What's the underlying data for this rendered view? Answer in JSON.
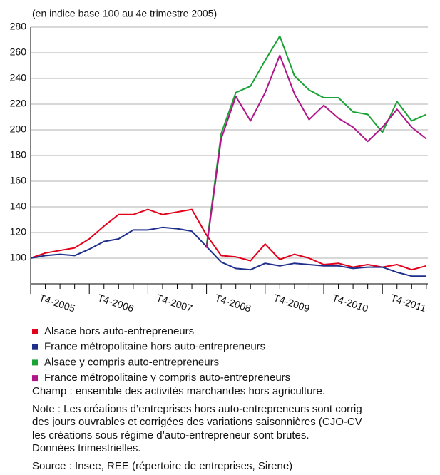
{
  "chart_data": {
    "type": "line",
    "subtitle": "(en indice base 100 au 4e trimestre 2005)",
    "categories": [
      "T4-2005",
      null,
      null,
      null,
      "T4-2006",
      null,
      null,
      null,
      "T4-2007",
      null,
      null,
      null,
      "T4-2008",
      null,
      null,
      null,
      "T4-2009",
      null,
      null,
      null,
      "T4-2010",
      null,
      null,
      null,
      "T4-2011",
      null,
      null,
      null
    ],
    "series": [
      {
        "name": "Alsace y compris auto-entrepreneurs",
        "color": "#1aa335",
        "values": [
          null,
          null,
          null,
          null,
          null,
          null,
          null,
          null,
          null,
          null,
          null,
          null,
          110,
          197,
          229,
          234,
          254,
          273,
          242,
          231,
          225,
          225,
          214,
          212,
          198,
          222,
          207,
          212
        ]
      },
      {
        "name": "Alsace hors auto-entrepreneurs",
        "color": "#e3001b",
        "values": [
          100,
          104,
          106,
          108,
          115,
          125,
          134,
          134,
          138,
          134,
          136,
          138,
          118,
          102,
          101,
          98,
          111,
          99,
          103,
          100,
          95,
          96,
          93,
          95,
          93,
          95,
          91,
          94
        ]
      },
      {
        "name": "France métropolitaine hors auto-entrepreneurs",
        "color": "#1f2f8c",
        "values": [
          100,
          102,
          103,
          102,
          107,
          113,
          115,
          122,
          122,
          124,
          123,
          121,
          109,
          97,
          92,
          91,
          96,
          94,
          96,
          95,
          94,
          94,
          92,
          93,
          93,
          89,
          86,
          86
        ]
      },
      {
        "name": "France métropolitaine y compris auto-entrepreneurs",
        "color": "#b0168a",
        "values": [
          null,
          null,
          null,
          null,
          null,
          null,
          null,
          null,
          null,
          null,
          null,
          null,
          108,
          193,
          226,
          207,
          229,
          258,
          228,
          208,
          219,
          209,
          202,
          191,
          202,
          216,
          202,
          193
        ]
      }
    ],
    "legend_order": [
      1,
      2,
      0,
      3
    ],
    "ylim": [
      80,
      280
    ],
    "yticks": [
      100,
      120,
      140,
      160,
      180,
      200,
      220,
      240,
      260,
      280
    ],
    "grid": true,
    "notes": [
      "Champ : ensemble des activités marchandes hors agriculture.",
      "Note : Les créations d’entreprises hors auto-entrepreneurs sont corrig",
      "des jours ouvrables et corrigées des variations saisonnières (CJO-CV",
      "les créations sous régime d’auto-entrepreneur sont brutes.",
      "Données trimestrielles.",
      "Source : Insee, REE (répertoire de entreprises, Sirene)"
    ]
  }
}
